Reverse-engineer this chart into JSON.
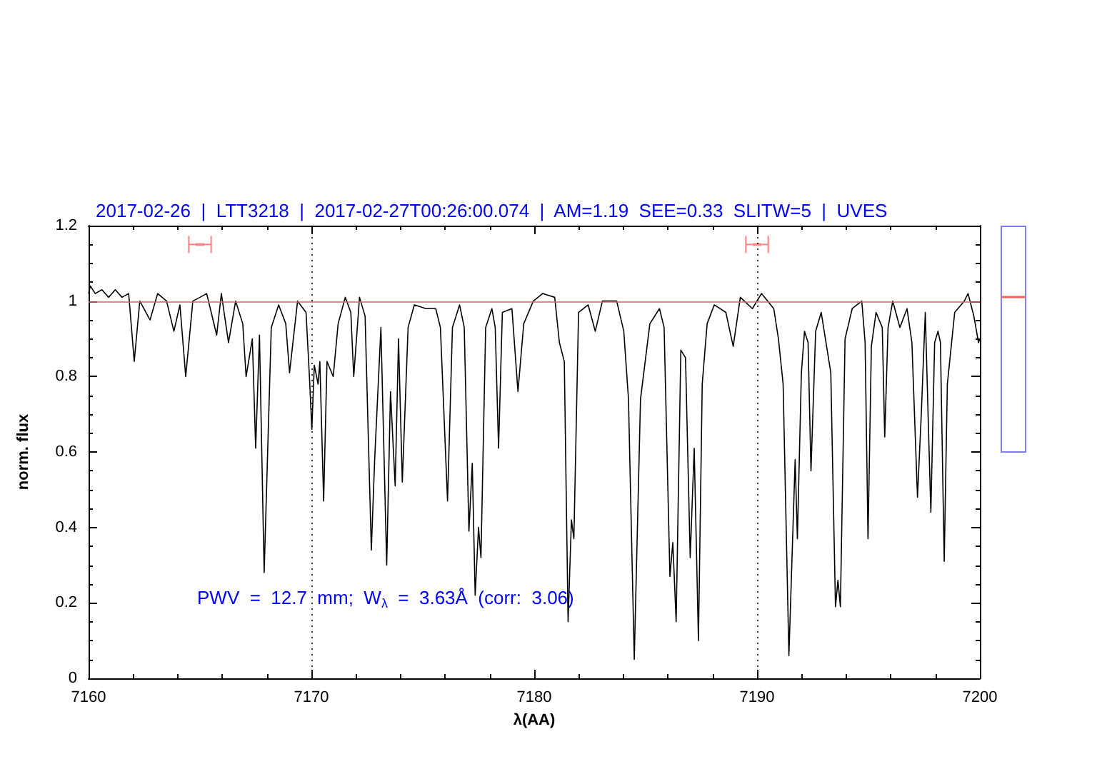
{
  "chart_data": {
    "type": "line",
    "title": "2017-02-26  |  LTT3218  |  2017-02-27T00:26:00.074  |  AM=1.19  SEE=0.33  SLITW=5  |  UVES",
    "xlabel": "λ(AA)",
    "ylabel": "norm. flux",
    "xlim": [
      7160,
      7200
    ],
    "xticks": [
      7160,
      7170,
      7180,
      7190,
      7200
    ],
    "ylim": [
      0,
      1.2
    ],
    "yticks": [
      0,
      0.2,
      0.4,
      0.6,
      0.8,
      1,
      1.2
    ],
    "grid": false,
    "series": [
      {
        "color": "#000000",
        "line_style": "solid",
        "x": [
          7160.0,
          7160.08,
          7160.3,
          7160.6,
          7160.9,
          7161.2,
          7161.5,
          7161.8,
          7162.05,
          7162.3,
          7162.76,
          7163.1,
          7163.5,
          7163.83,
          7164.1,
          7164.36,
          7164.68,
          7165.0,
          7165.3,
          7165.75,
          7165.96,
          7166.28,
          7166.6,
          7166.92,
          7167.07,
          7167.35,
          7167.5,
          7167.67,
          7167.88,
          7168.2,
          7168.53,
          7168.85,
          7169.02,
          7169.38,
          7169.76,
          7169.92,
          7170.02,
          7170.13,
          7170.3,
          7170.38,
          7170.55,
          7170.7,
          7170.98,
          7171.2,
          7171.52,
          7171.77,
          7171.9,
          7172.16,
          7172.41,
          7172.69,
          7172.84,
          7173.12,
          7173.38,
          7173.55,
          7173.76,
          7173.91,
          7174.08,
          7174.34,
          7174.62,
          7175.15,
          7175.58,
          7175.79,
          7176.11,
          7176.33,
          7176.65,
          7176.86,
          7177.07,
          7177.22,
          7177.35,
          7177.5,
          7177.61,
          7177.82,
          7178.1,
          7178.25,
          7178.4,
          7178.57,
          7179.0,
          7179.27,
          7179.53,
          7179.96,
          7180.38,
          7180.92,
          7181.13,
          7181.35,
          7181.52,
          7181.67,
          7181.78,
          7181.99,
          7182.42,
          7182.74,
          7183.06,
          7183.7,
          7184.02,
          7184.23,
          7184.49,
          7184.77,
          7185.19,
          7185.62,
          7185.83,
          7186.09,
          7186.22,
          7186.37,
          7186.58,
          7186.79,
          7187.0,
          7187.18,
          7187.37,
          7187.54,
          7187.76,
          7188.08,
          7188.6,
          7188.93,
          7189.25,
          7189.79,
          7190.2,
          7190.75,
          7190.96,
          7191.17,
          7191.43,
          7191.71,
          7191.81,
          7191.99,
          7192.13,
          7192.29,
          7192.42,
          7192.63,
          7192.88,
          7193.31,
          7193.52,
          7193.63,
          7193.74,
          7193.95,
          7194.27,
          7194.7,
          7194.85,
          7194.98,
          7195.13,
          7195.34,
          7195.62,
          7195.73,
          7195.88,
          7196.09,
          7196.41,
          7196.73,
          7196.95,
          7197.2,
          7197.37,
          7197.55,
          7197.69,
          7197.8,
          7197.97,
          7198.12,
          7198.23,
          7198.4,
          7198.54,
          7198.87,
          7199.3,
          7199.47,
          7199.73,
          7199.94,
          7200.0
        ],
        "values": [
          1.02,
          1.04,
          1.02,
          1.03,
          1.01,
          1.03,
          1.01,
          1.02,
          0.84,
          1.0,
          0.95,
          1.02,
          1.0,
          0.92,
          0.99,
          0.8,
          1.0,
          1.01,
          1.02,
          0.91,
          1.02,
          0.89,
          1.0,
          0.94,
          0.8,
          0.9,
          0.61,
          0.91,
          0.28,
          0.93,
          0.99,
          0.94,
          0.81,
          1.0,
          0.97,
          0.79,
          0.66,
          0.83,
          0.78,
          0.84,
          0.47,
          0.84,
          0.8,
          0.94,
          1.01,
          0.97,
          0.8,
          1.01,
          0.96,
          0.34,
          0.58,
          0.93,
          0.3,
          0.76,
          0.51,
          0.9,
          0.52,
          0.93,
          0.99,
          0.98,
          0.98,
          0.93,
          0.47,
          0.93,
          0.99,
          0.93,
          0.39,
          0.57,
          0.22,
          0.4,
          0.32,
          0.93,
          0.98,
          0.93,
          0.61,
          0.97,
          0.98,
          0.76,
          0.94,
          1.0,
          1.02,
          1.01,
          0.89,
          0.84,
          0.15,
          0.42,
          0.37,
          0.97,
          0.99,
          0.92,
          1.0,
          1.0,
          0.92,
          0.74,
          0.05,
          0.74,
          0.94,
          0.98,
          0.93,
          0.27,
          0.36,
          0.15,
          0.87,
          0.85,
          0.32,
          0.61,
          0.1,
          0.78,
          0.94,
          0.99,
          0.97,
          0.88,
          1.01,
          0.98,
          1.02,
          0.98,
          0.9,
          0.78,
          0.06,
          0.58,
          0.37,
          0.81,
          0.92,
          0.89,
          0.55,
          0.92,
          0.97,
          0.81,
          0.19,
          0.26,
          0.19,
          0.9,
          0.98,
          1.0,
          0.89,
          0.37,
          0.88,
          0.97,
          0.93,
          0.64,
          0.93,
          1.0,
          0.93,
          0.98,
          0.89,
          0.48,
          0.7,
          0.97,
          0.67,
          0.44,
          0.89,
          0.92,
          0.89,
          0.31,
          0.78,
          0.97,
          1.0,
          1.02,
          0.96,
          0.89,
          0.9
        ]
      },
      {
        "type": "scatter",
        "color": "#ff8080",
        "x": [
          7165,
          7190
        ],
        "values": [
          1.15,
          1.15
        ],
        "xerrors": [
          0.5,
          0.5
        ]
      }
    ],
    "ref_lines": [
      {
        "axis": "y",
        "value": 1,
        "color": "#e06060",
        "line_style": "solid"
      },
      {
        "axis": "x",
        "value": 7170,
        "color": "#000000",
        "line_style": "dotted"
      },
      {
        "axis": "x",
        "value": 7190,
        "color": "#000000",
        "line_style": "dotted"
      }
    ],
    "annotations": [
      "PWV  =  12.7  mm;  W$_{λ}$  =  3.63Å  (corr:  3.06)"
    ]
  }
}
